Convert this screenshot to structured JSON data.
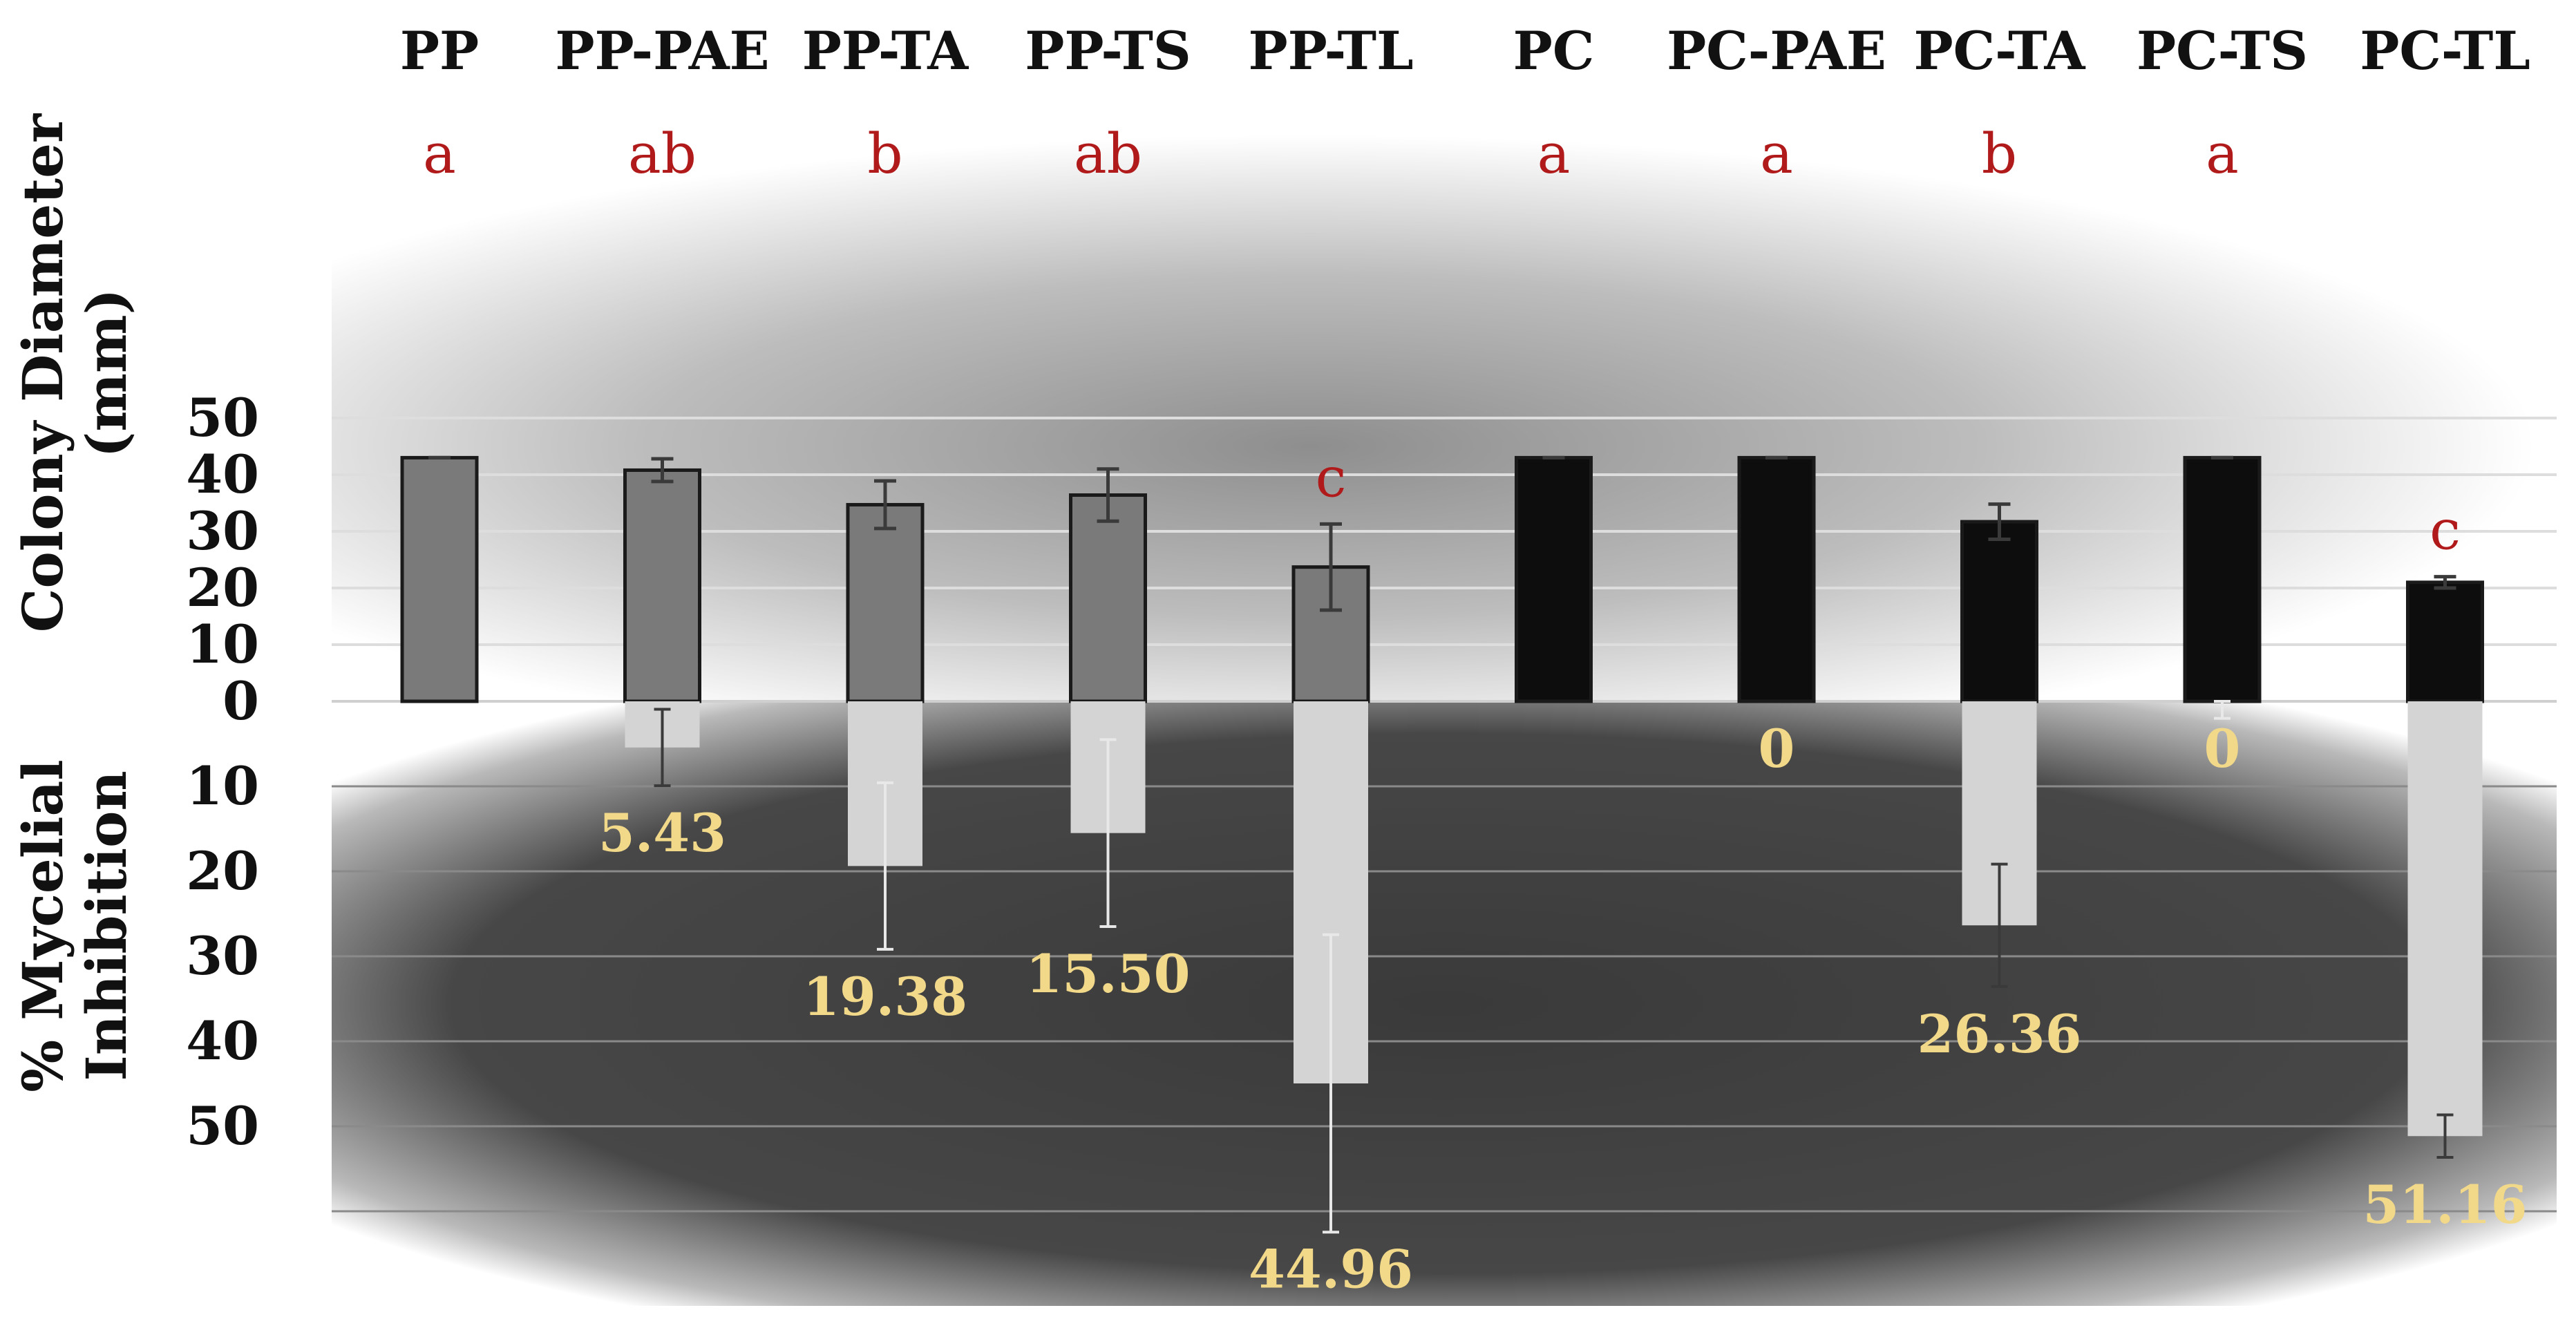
{
  "chart_data": {
    "type": "bar",
    "categories": [
      "PP",
      "PP-PAE",
      "PP-TA",
      "PP-TS",
      "PP-TL",
      "PC",
      "PC-PAE",
      "PC-TA",
      "PC-TS",
      "PC-TL"
    ],
    "colony_diameter": {
      "ylabel_line1": "Colony Diameter",
      "ylabel_line2": "(mm)",
      "ylim": [
        0,
        50
      ],
      "ticks": [
        "50",
        "40",
        "30",
        "20",
        "10",
        "0"
      ],
      "values": [
        43.0,
        40.8,
        34.7,
        36.4,
        23.7,
        43.0,
        43.0,
        31.7,
        43.0,
        21.0
      ],
      "errors": [
        0.0,
        2.0,
        4.2,
        4.6,
        7.6,
        0.0,
        0.0,
        3.1,
        0.0,
        1.0
      ],
      "letters": [
        "a",
        "ab",
        "b",
        "ab",
        "c",
        "a",
        "a",
        "b",
        "a",
        "c"
      ],
      "colors": [
        "#7a7a7a",
        "#7a7a7a",
        "#7a7a7a",
        "#7a7a7a",
        "#7a7a7a",
        "#0d0d0d",
        "#0d0d0d",
        "#0d0d0d",
        "#0d0d0d",
        "#0d0d0d"
      ]
    },
    "mycelial_inhibition": {
      "ylabel_line1": "% Mycelial",
      "ylabel_line2": "Inhibition",
      "ylim": [
        0,
        70
      ],
      "ticks": [
        "10",
        "20",
        "30",
        "40",
        "50"
      ],
      "values": [
        0,
        5.43,
        19.38,
        15.5,
        44.96,
        0,
        0,
        26.36,
        0,
        51.16
      ],
      "errors": [
        0,
        4.5,
        9.8,
        11.0,
        17.5,
        0,
        0,
        7.2,
        2.0,
        2.5
      ],
      "labels": [
        "",
        "5.43",
        "19.38",
        "15.50",
        "44.96",
        "",
        "0",
        "26.36",
        "0",
        "51.16"
      ],
      "bar_color": "#d4d4d4"
    }
  }
}
